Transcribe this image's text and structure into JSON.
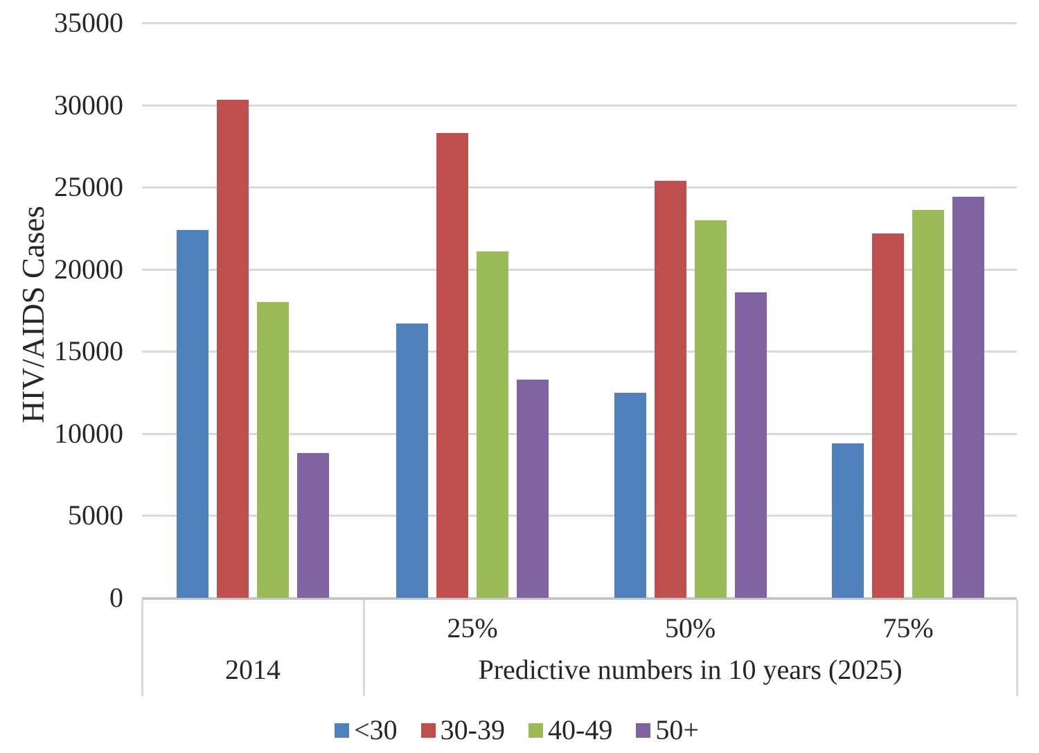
{
  "chart_data": {
    "type": "bar",
    "title": "",
    "ylabel": "HIV/AIDS Cases",
    "xlabel": "",
    "ylim": [
      0,
      35000
    ],
    "yticks": [
      0,
      5000,
      10000,
      15000,
      20000,
      25000,
      30000,
      35000
    ],
    "grid": "horizontal",
    "legend_position": "bottom",
    "categories": [
      "2014",
      "25%",
      "50%",
      "75%"
    ],
    "x_axis": {
      "sub_labels": [
        "",
        "25%",
        "50%",
        "75%"
      ],
      "group_labels": [
        {
          "label": "2014",
          "span_start": 0,
          "span_end": 1
        },
        {
          "label": "Predictive numbers in 10 years (2025)",
          "span_start": 1,
          "span_end": 4
        }
      ]
    },
    "series": [
      {
        "name": "<30",
        "color": "#4F81BD",
        "values": [
          22400,
          16700,
          12500,
          9400
        ]
      },
      {
        "name": "30-39",
        "color": "#C0504D",
        "values": [
          30300,
          28300,
          25400,
          22200
        ]
      },
      {
        "name": "40-49",
        "color": "#9BBB59",
        "values": [
          18000,
          21100,
          23000,
          23600
        ]
      },
      {
        "name": "50+",
        "color": "#8064A2",
        "values": [
          8800,
          13300,
          18600,
          24400
        ]
      }
    ],
    "colors": {
      "gridline": "#D9D9D9",
      "axis_line": "#C6C6C6",
      "text": "#262626",
      "background": "#FFFFFF"
    }
  }
}
